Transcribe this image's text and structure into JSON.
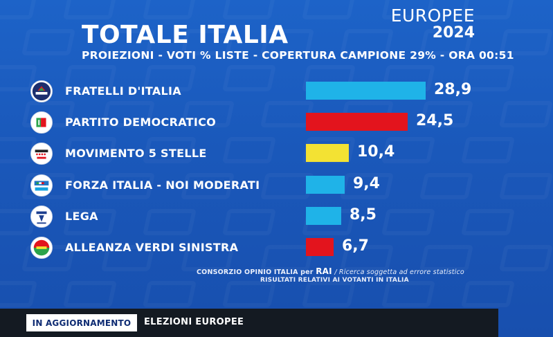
{
  "header": {
    "brand_label": "EUROPEE",
    "brand_year": "2024",
    "title": "TOTALE ITALIA",
    "subtitle": "PROIEZIONI - VOTI % LISTE - COPERTURA CAMPIONE 29% - ORA 00:51"
  },
  "colors": {
    "background": "#1b5cbf",
    "cyan": "#1fb3e8",
    "red": "#e3141d",
    "yellow": "#f3e233"
  },
  "chart_data": {
    "type": "bar",
    "orientation": "horizontal",
    "title": "TOTALE ITALIA",
    "categories": [
      "FRATELLI D'ITALIA",
      "PARTITO DEMOCRATICO",
      "MOVIMENTO 5 STELLE",
      "FORZA ITALIA - NOI MODERATI",
      "LEGA",
      "ALLEANZA VERDI SINISTRA"
    ],
    "values": [
      28.9,
      24.5,
      10.4,
      9.4,
      8.5,
      6.7
    ],
    "value_labels": [
      "28,9",
      "24,5",
      "10,4",
      "9,4",
      "8,5",
      "6,7"
    ],
    "bar_colors": [
      "#1fb3e8",
      "#e3141d",
      "#f3e233",
      "#1fb3e8",
      "#1fb3e8",
      "#e3141d"
    ],
    "logos": [
      "fdi-logo-icon",
      "pd-logo-icon",
      "m5s-logo-icon",
      "fi-logo-icon",
      "lega-logo-icon",
      "avs-logo-icon"
    ],
    "xlim": [
      0,
      28.9
    ],
    "grid": false,
    "legend": "none"
  },
  "footnote": {
    "source_prefix": "CONSORZIO OPINIO ITALIA per",
    "source_brand": "RAI",
    "source_note": "/ Ricerca soggetta ad errore statistico",
    "line2": "RISULTATI RELATIVI AI VOTANTI IN ITALIA"
  },
  "ticker": {
    "badge": "IN AGGIORNAMENTO",
    "label": "ELEZIONI EUROPEE"
  }
}
